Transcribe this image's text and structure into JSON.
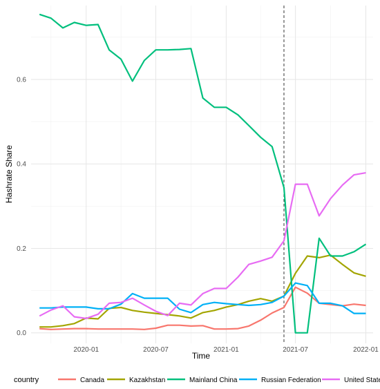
{
  "chart_data": {
    "type": "line",
    "title": "",
    "xlabel": "Time",
    "ylabel": "Hashrate Share",
    "x_tick_labels": [
      "2020-01",
      "2020-07",
      "2021-01",
      "2021-07",
      "2022-01"
    ],
    "y_tick_labels": [
      "0.0",
      "0.2",
      "0.4",
      "0.6"
    ],
    "ylim": [
      -0.025,
      0.775
    ],
    "xlim": [
      "2019-08-10",
      "2022-01-20"
    ],
    "grid": true,
    "vline": "2021-06-01",
    "legend": {
      "title": "country",
      "position": "bottom"
    },
    "x": [
      "2019-09-01",
      "2019-10-01",
      "2019-11-01",
      "2019-12-01",
      "2020-01-01",
      "2020-02-01",
      "2020-03-01",
      "2020-04-01",
      "2020-05-01",
      "2020-06-01",
      "2020-07-01",
      "2020-08-01",
      "2020-09-01",
      "2020-10-01",
      "2020-11-01",
      "2020-12-01",
      "2021-01-01",
      "2021-02-01",
      "2021-03-01",
      "2021-04-01",
      "2021-05-01",
      "2021-06-01",
      "2021-07-01",
      "2021-08-01",
      "2021-09-01",
      "2021-10-01",
      "2021-11-01",
      "2021-12-01",
      "2022-01-01"
    ],
    "series": [
      {
        "name": "Canada",
        "color": "#F8766D",
        "values": [
          0.01,
          0.008,
          0.009,
          0.01,
          0.01,
          0.009,
          0.009,
          0.009,
          0.009,
          0.008,
          0.011,
          0.018,
          0.018,
          0.016,
          0.017,
          0.009,
          0.009,
          0.01,
          0.016,
          0.03,
          0.047,
          0.06,
          0.108,
          0.094,
          0.07,
          0.067,
          0.064,
          0.068,
          0.065
        ]
      },
      {
        "name": "Kazakhstan",
        "color": "#A3A500",
        "values": [
          0.014,
          0.014,
          0.017,
          0.022,
          0.035,
          0.033,
          0.058,
          0.06,
          0.053,
          0.049,
          0.046,
          0.043,
          0.04,
          0.035,
          0.048,
          0.053,
          0.061,
          0.067,
          0.075,
          0.081,
          0.075,
          0.087,
          0.141,
          0.182,
          0.178,
          0.184,
          0.162,
          0.142,
          0.134
        ]
      },
      {
        "name": "Mainland China",
        "color": "#00BF7D",
        "values": [
          0.754,
          0.745,
          0.722,
          0.735,
          0.728,
          0.73,
          0.67,
          0.648,
          0.596,
          0.645,
          0.67,
          0.67,
          0.671,
          0.673,
          0.556,
          0.534,
          0.534,
          0.516,
          0.491,
          0.463,
          0.441,
          0.344,
          0.0,
          0.0,
          0.224,
          0.182,
          0.182,
          0.192,
          0.21
        ]
      },
      {
        "name": "Russian Federation",
        "color": "#00B0F6",
        "values": [
          0.059,
          0.059,
          0.061,
          0.061,
          0.061,
          0.057,
          0.057,
          0.068,
          0.093,
          0.082,
          0.082,
          0.082,
          0.056,
          0.048,
          0.067,
          0.072,
          0.069,
          0.067,
          0.065,
          0.067,
          0.072,
          0.087,
          0.118,
          0.112,
          0.07,
          0.07,
          0.064,
          0.046,
          0.046
        ]
      },
      {
        "name": "United States",
        "color": "#E76BF3",
        "values": [
          0.04,
          0.054,
          0.064,
          0.038,
          0.034,
          0.044,
          0.07,
          0.072,
          0.082,
          0.066,
          0.051,
          0.041,
          0.07,
          0.066,
          0.093,
          0.105,
          0.105,
          0.132,
          0.162,
          0.17,
          0.179,
          0.218,
          0.352,
          0.352,
          0.277,
          0.318,
          0.35,
          0.374,
          0.379
        ]
      }
    ]
  }
}
